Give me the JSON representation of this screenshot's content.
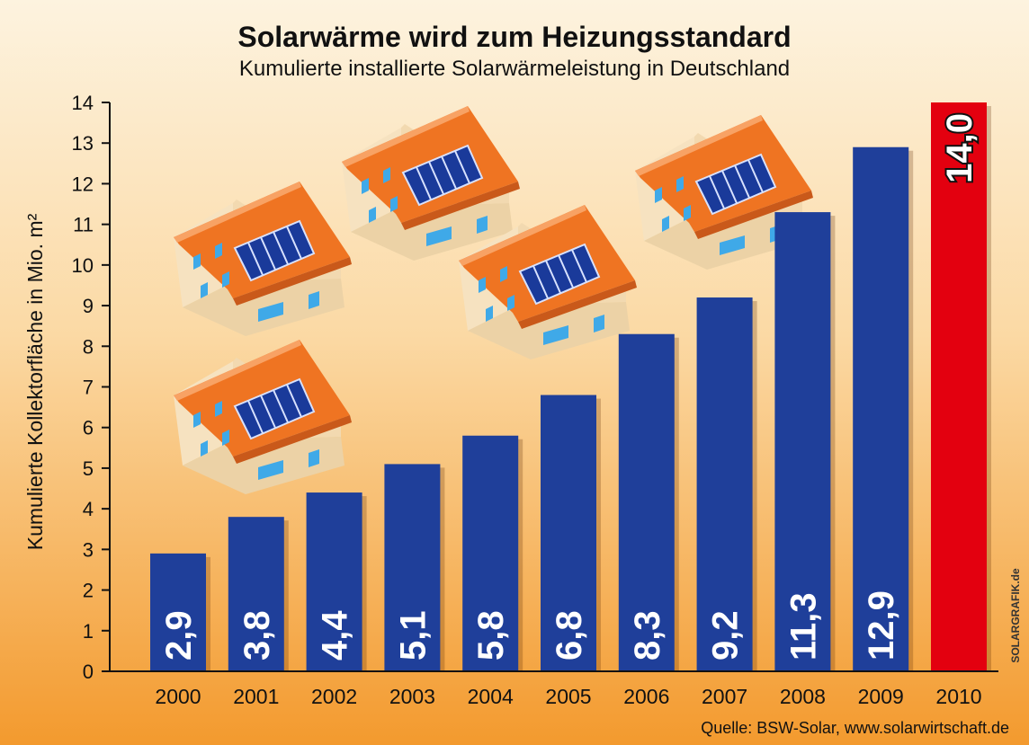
{
  "chart_data": {
    "type": "bar",
    "title": "Solarwärme wird zum Heizungsstandard",
    "subtitle": "Kumulierte installierte Solarwärmeleistung in Deutschland",
    "ylabel": "Kumulierte Kollektorfläche in Mio. m²",
    "xlabel": "",
    "categories": [
      "2000",
      "2001",
      "2002",
      "2003",
      "2004",
      "2005",
      "2006",
      "2007",
      "2008",
      "2009",
      "2010"
    ],
    "values": [
      2.9,
      3.8,
      4.4,
      5.1,
      5.8,
      6.8,
      8.3,
      9.2,
      11.3,
      12.9,
      14.0
    ],
    "value_labels": [
      "2,9",
      "3,8",
      "4,4",
      "5,1",
      "5,8",
      "6,8",
      "8,3",
      "9,2",
      "11,3",
      "12,9",
      "14,0"
    ],
    "ylim": [
      0,
      14
    ],
    "yticks": [
      0,
      1,
      2,
      3,
      4,
      5,
      6,
      7,
      8,
      9,
      10,
      11,
      12,
      13,
      14
    ],
    "grid": false,
    "legend": "none",
    "colors": {
      "bar": "#1f3f9a",
      "highlight": "#e3000f",
      "background_top": "#fdf3df",
      "background_bottom": "#f39a2e"
    },
    "highlight_category": "2010",
    "source": "Quelle: BSW-Solar, www.solarwirtschaft.de",
    "credit": "SOLARGRAFIK.de"
  },
  "illustration": {
    "icon": "house-with-solar-panels-icon"
  }
}
